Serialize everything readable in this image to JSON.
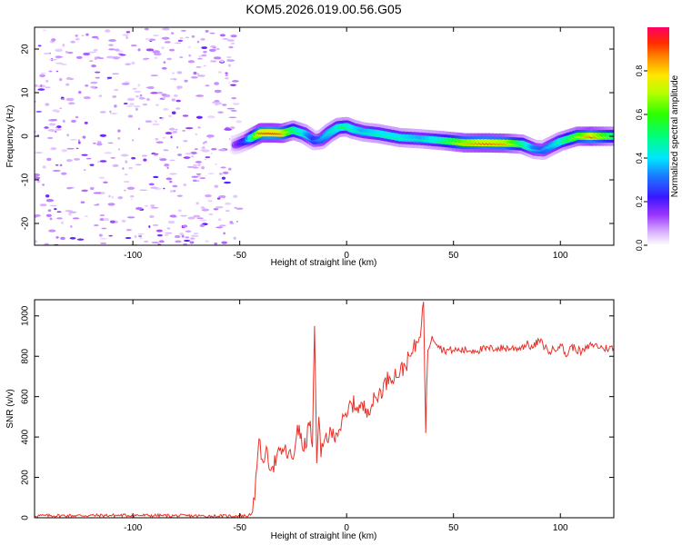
{
  "title": "KOM5.2026.019.00.56.G05",
  "colors": {
    "snr_line": "#e8322a",
    "axis": "#000000",
    "background": "#ffffff"
  },
  "chart_data": [
    {
      "type": "heatmap",
      "name": "spectrogram",
      "xlabel": "Height of straight line (km)",
      "ylabel": "Frequency (Hz)",
      "xlim": [
        -146,
        125
      ],
      "ylim": [
        -25,
        25
      ],
      "xticks": [
        -100,
        -50,
        0,
        50,
        100
      ],
      "yticks": [
        -20,
        -10,
        0,
        10,
        20
      ],
      "noise_region_x": [
        -146,
        -50
      ],
      "signal_track": {
        "x": [
          -52,
          -47,
          -40,
          -35,
          -30,
          -25,
          -20,
          -15,
          -12,
          -8,
          -4,
          0,
          3,
          8,
          15,
          25,
          35,
          45,
          55,
          65,
          75,
          82,
          88,
          92,
          95,
          100,
          108,
          115,
          125
        ],
        "frequency": [
          -2,
          -1,
          0.8,
          0.8,
          0.7,
          1.4,
          0.6,
          -1.0,
          -0.8,
          0.8,
          2.0,
          2.2,
          1.6,
          1.0,
          0.6,
          -0.3,
          -0.6,
          -1.0,
          -1.5,
          -1.5,
          -1.6,
          -1.8,
          -3.0,
          -3.2,
          -2.4,
          -1.2,
          0.0,
          0.0,
          0.0
        ],
        "amplitude": [
          0.15,
          0.3,
          0.9,
          0.95,
          0.9,
          0.6,
          0.5,
          0.3,
          0.35,
          0.45,
          0.5,
          0.55,
          0.5,
          0.45,
          0.5,
          0.5,
          0.45,
          0.55,
          0.8,
          0.9,
          0.85,
          0.6,
          0.4,
          0.35,
          0.4,
          0.5,
          0.7,
          0.9,
          0.6
        ]
      },
      "colorbar": {
        "label": "Normalized spectral amplitude",
        "range": [
          0,
          1
        ],
        "ticks": [
          0.0,
          0.2,
          0.4,
          0.6,
          0.8
        ],
        "tick_labels": [
          "0.0",
          "0.2",
          "0.4",
          "0.6",
          "0.8"
        ]
      }
    },
    {
      "type": "line",
      "name": "snr",
      "xlabel": "Height of straight line (km)",
      "ylabel": "SNR (v/v)",
      "xlim": [
        -146,
        125
      ],
      "ylim": [
        0,
        1080
      ],
      "xticks": [
        -100,
        -50,
        0,
        50,
        100
      ],
      "yticks": [
        0,
        200,
        400,
        600,
        800,
        1000
      ],
      "series": [
        {
          "name": "SNR",
          "x": [
            -146,
            -100,
            -60,
            -46,
            -44,
            -43,
            -42,
            -41,
            -40,
            -38,
            -35,
            -30,
            -25,
            -23,
            -20,
            -17,
            -16,
            -15,
            -14,
            -13,
            -12,
            -10,
            -5,
            0,
            2,
            5,
            10,
            15,
            20,
            25,
            30,
            33,
            35,
            36,
            37,
            38,
            40,
            45,
            50,
            60,
            70,
            80,
            85,
            87,
            90,
            95,
            100,
            103,
            105,
            110,
            115,
            120,
            125
          ],
          "y": [
            10,
            12,
            8,
            10,
            30,
            90,
            250,
            390,
            290,
            320,
            250,
            340,
            290,
            460,
            330,
            480,
            350,
            950,
            270,
            500,
            300,
            400,
            420,
            500,
            570,
            550,
            540,
            610,
            700,
            720,
            800,
            870,
            960,
            1070,
            420,
            830,
            900,
            830,
            830,
            830,
            840,
            840,
            860,
            840,
            880,
            820,
            860,
            800,
            850,
            820,
            860,
            840,
            840
          ]
        }
      ]
    }
  ]
}
